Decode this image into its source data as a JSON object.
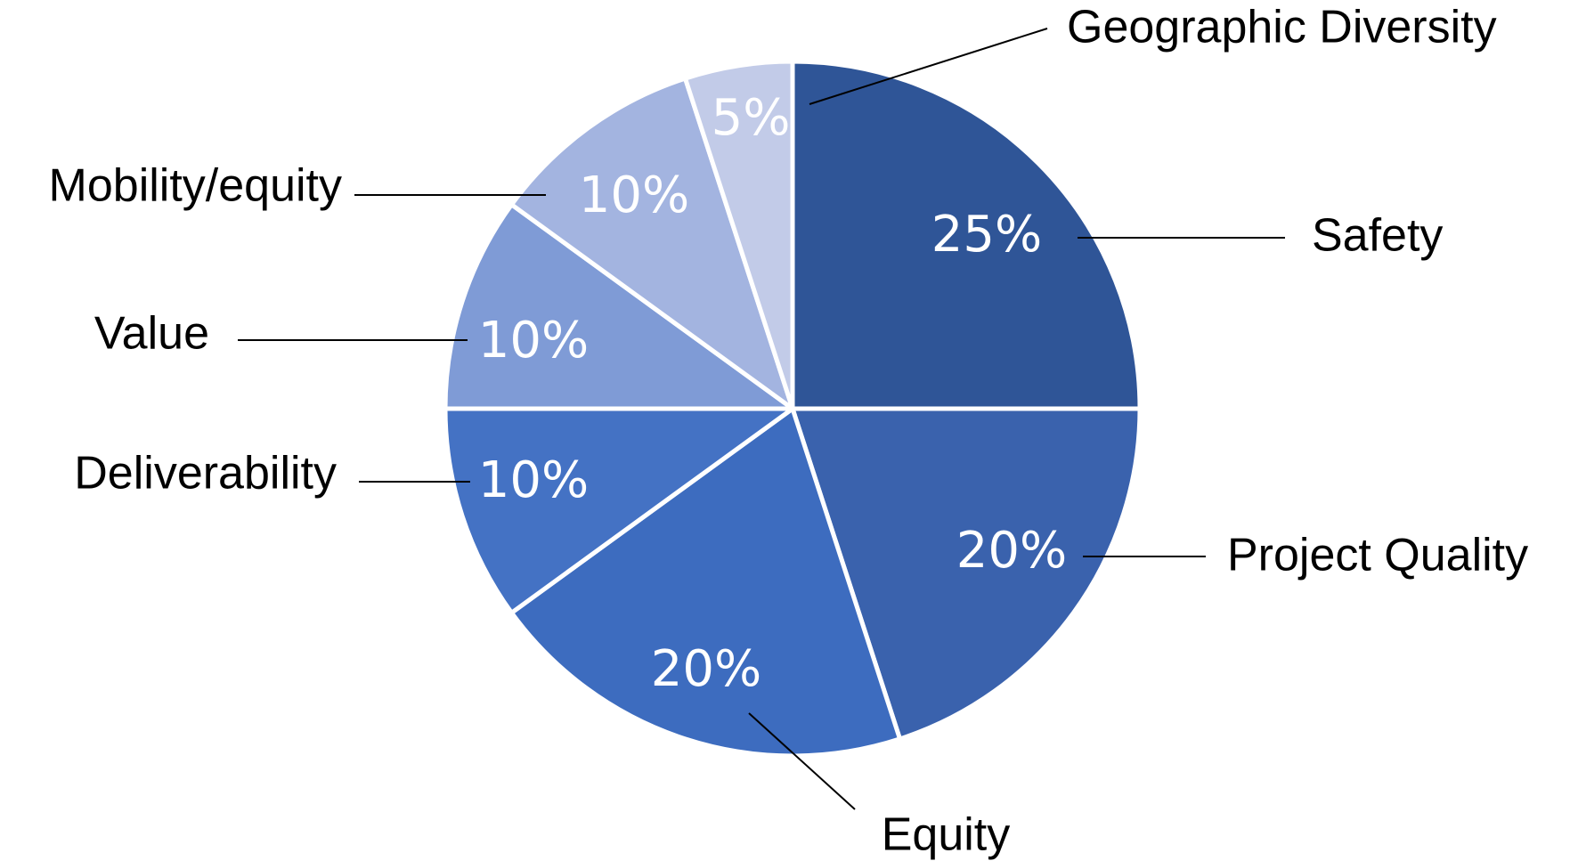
{
  "chart_data": {
    "type": "pie",
    "categories": [
      "Safety",
      "Project Quality",
      "Equity",
      "Deliverability",
      "Value",
      "Mobility/equity",
      "Geographic Diversity"
    ],
    "values": [
      25,
      20,
      20,
      10,
      10,
      10,
      5
    ],
    "value_labels": [
      "25%",
      "20%",
      "20%",
      "10%",
      "10%",
      "10%",
      "5%"
    ],
    "colors": [
      "#2f5597",
      "#3a62ad",
      "#3d6cbf",
      "#4472c4",
      "#7f9bd6",
      "#a3b4e0",
      "#c2cbe8"
    ]
  }
}
